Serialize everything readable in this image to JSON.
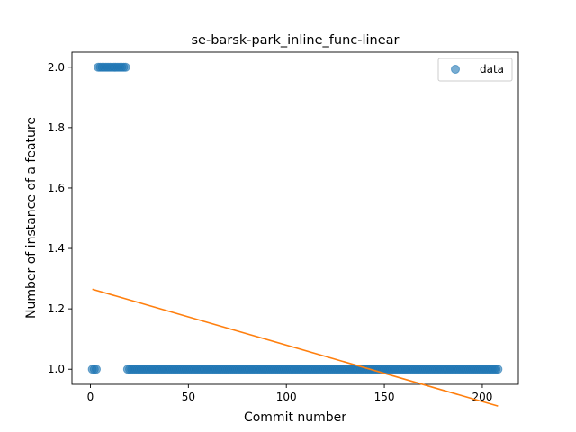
{
  "chart_data": {
    "type": "scatter",
    "title": "se-barsk-park_inline_func-linear",
    "xlabel": "Commit number",
    "ylabel": "Number of instance of a feature",
    "xlim": [
      -9.4,
      218.4
    ],
    "ylim": [
      0.95,
      2.05
    ],
    "xticks": [
      0,
      50,
      100,
      150,
      200
    ],
    "yticks": [
      1.0,
      1.2,
      1.4,
      1.6,
      1.8,
      2.0
    ],
    "xtick_labels": [
      "0",
      "50",
      "100",
      "150",
      "200"
    ],
    "ytick_labels": [
      "1.0",
      "1.2",
      "1.4",
      "1.6",
      "1.8",
      "2.0"
    ],
    "grid": false,
    "legend_position": "top-right",
    "series": [
      {
        "name": "data",
        "kind": "scatter",
        "color": "#1f77b4",
        "points": {
          "x_start": 1,
          "x_end": 208,
          "segments": [
            {
              "from": 1,
              "to": 3,
              "y": 1.0
            },
            {
              "from": 4,
              "to": 18,
              "y": 2.0
            },
            {
              "from": 19,
              "to": 208,
              "y": 1.0
            }
          ]
        }
      },
      {
        "name": "",
        "kind": "line",
        "color": "#ff7f0e",
        "x": [
          1,
          208
        ],
        "y": [
          1.265,
          0.878
        ]
      }
    ]
  }
}
